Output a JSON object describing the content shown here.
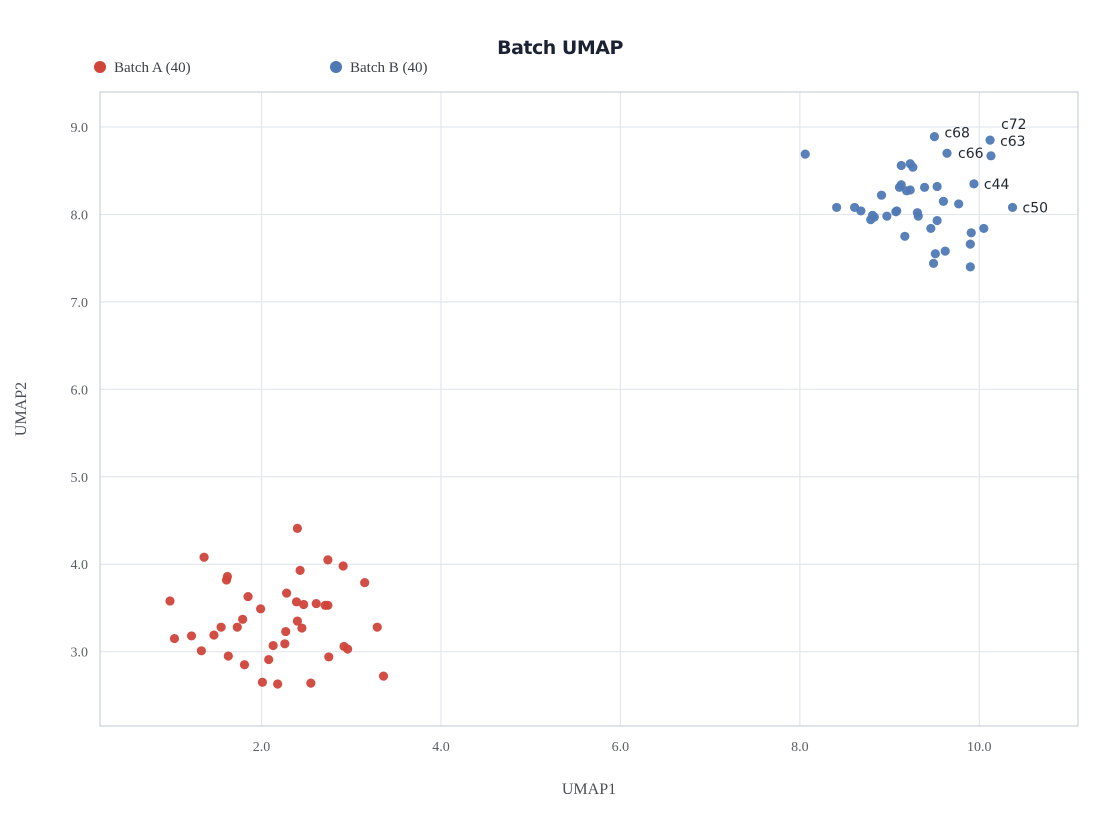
{
  "chart_data": {
    "type": "scatter",
    "title": "Batch UMAP",
    "xlabel": "UMAP1",
    "ylabel": "UMAP2",
    "xlim": [
      0.2,
      11.1
    ],
    "ylim": [
      2.15,
      9.4
    ],
    "xticks": [
      2.0,
      4.0,
      6.0,
      8.0,
      10.0
    ],
    "yticks": [
      3.0,
      4.0,
      5.0,
      6.0,
      7.0,
      8.0,
      9.0
    ],
    "xtick_labels": [
      "2.0",
      "4.0",
      "6.0",
      "8.0",
      "10.0"
    ],
    "ytick_labels": [
      "3.0",
      "4.0",
      "5.0",
      "6.0",
      "7.0",
      "8.0",
      "9.0"
    ],
    "grid": true,
    "legend_position": "top-left",
    "series": [
      {
        "name": "Batch A (40)",
        "color": "#d0453a",
        "points": [
          [
            0.98,
            3.58
          ],
          [
            1.03,
            3.15
          ],
          [
            1.22,
            3.18
          ],
          [
            1.33,
            3.01
          ],
          [
            1.36,
            4.08
          ],
          [
            1.47,
            3.19
          ],
          [
            1.55,
            3.28
          ],
          [
            1.61,
            3.82
          ],
          [
            1.62,
            3.86
          ],
          [
            1.63,
            2.95
          ],
          [
            1.73,
            3.28
          ],
          [
            1.79,
            3.37
          ],
          [
            1.81,
            2.85
          ],
          [
            1.85,
            3.63
          ],
          [
            1.99,
            3.49
          ],
          [
            2.01,
            2.65
          ],
          [
            2.08,
            2.91
          ],
          [
            2.13,
            3.07
          ],
          [
            2.18,
            2.63
          ],
          [
            2.26,
            3.09
          ],
          [
            2.27,
            3.23
          ],
          [
            2.28,
            3.67
          ],
          [
            2.39,
            3.57
          ],
          [
            2.4,
            3.35
          ],
          [
            2.4,
            4.41
          ],
          [
            2.43,
            3.93
          ],
          [
            2.45,
            3.27
          ],
          [
            2.47,
            3.54
          ],
          [
            2.55,
            2.64
          ],
          [
            2.61,
            3.55
          ],
          [
            2.71,
            3.53
          ],
          [
            2.74,
            4.05
          ],
          [
            2.74,
            3.53
          ],
          [
            2.75,
            2.94
          ],
          [
            2.91,
            3.98
          ],
          [
            2.92,
            3.06
          ],
          [
            2.96,
            3.03
          ],
          [
            3.15,
            3.79
          ],
          [
            3.29,
            3.28
          ],
          [
            3.36,
            2.72
          ]
        ]
      },
      {
        "name": "Batch B (40)",
        "color": "#4f79b5",
        "points": [
          [
            8.06,
            8.69
          ],
          [
            8.41,
            8.08
          ],
          [
            8.61,
            8.08
          ],
          [
            8.68,
            8.04
          ],
          [
            8.79,
            7.94
          ],
          [
            8.81,
            7.99
          ],
          [
            8.83,
            7.97
          ],
          [
            8.91,
            8.22
          ],
          [
            8.97,
            7.98
          ],
          [
            9.07,
            8.03
          ],
          [
            9.08,
            8.04
          ],
          [
            9.11,
            8.31
          ],
          [
            9.13,
            8.34
          ],
          [
            9.13,
            8.56
          ],
          [
            9.17,
            7.75
          ],
          [
            9.19,
            8.27
          ],
          [
            9.23,
            8.28
          ],
          [
            9.23,
            8.58
          ],
          [
            9.26,
            8.54
          ],
          [
            9.31,
            8.02
          ],
          [
            9.32,
            7.98
          ],
          [
            9.39,
            8.31
          ],
          [
            9.46,
            7.84
          ],
          [
            9.49,
            7.44
          ],
          [
            9.5,
            8.89
          ],
          [
            9.51,
            7.55
          ],
          [
            9.53,
            8.32
          ],
          [
            9.53,
            7.93
          ],
          [
            9.6,
            8.15
          ],
          [
            9.62,
            7.58
          ],
          [
            9.64,
            8.7
          ],
          [
            9.77,
            8.12
          ],
          [
            9.9,
            7.4
          ],
          [
            9.9,
            7.66
          ],
          [
            9.91,
            7.79
          ],
          [
            9.94,
            8.35
          ],
          [
            10.05,
            7.84
          ],
          [
            10.12,
            8.85
          ],
          [
            10.13,
            8.67
          ],
          [
            10.37,
            8.08
          ]
        ]
      }
    ],
    "annotations": [
      {
        "text": "c68",
        "x": 9.5,
        "y": 8.89
      },
      {
        "text": "c72",
        "x": 10.12,
        "y": 8.85
      },
      {
        "text": "c63",
        "x": 10.12,
        "y": 8.85
      },
      {
        "text": "c66",
        "x": 9.64,
        "y": 8.7
      },
      {
        "text": "c44",
        "x": 9.94,
        "y": 8.35
      },
      {
        "text": "c50",
        "x": 10.37,
        "y": 8.08
      }
    ]
  }
}
